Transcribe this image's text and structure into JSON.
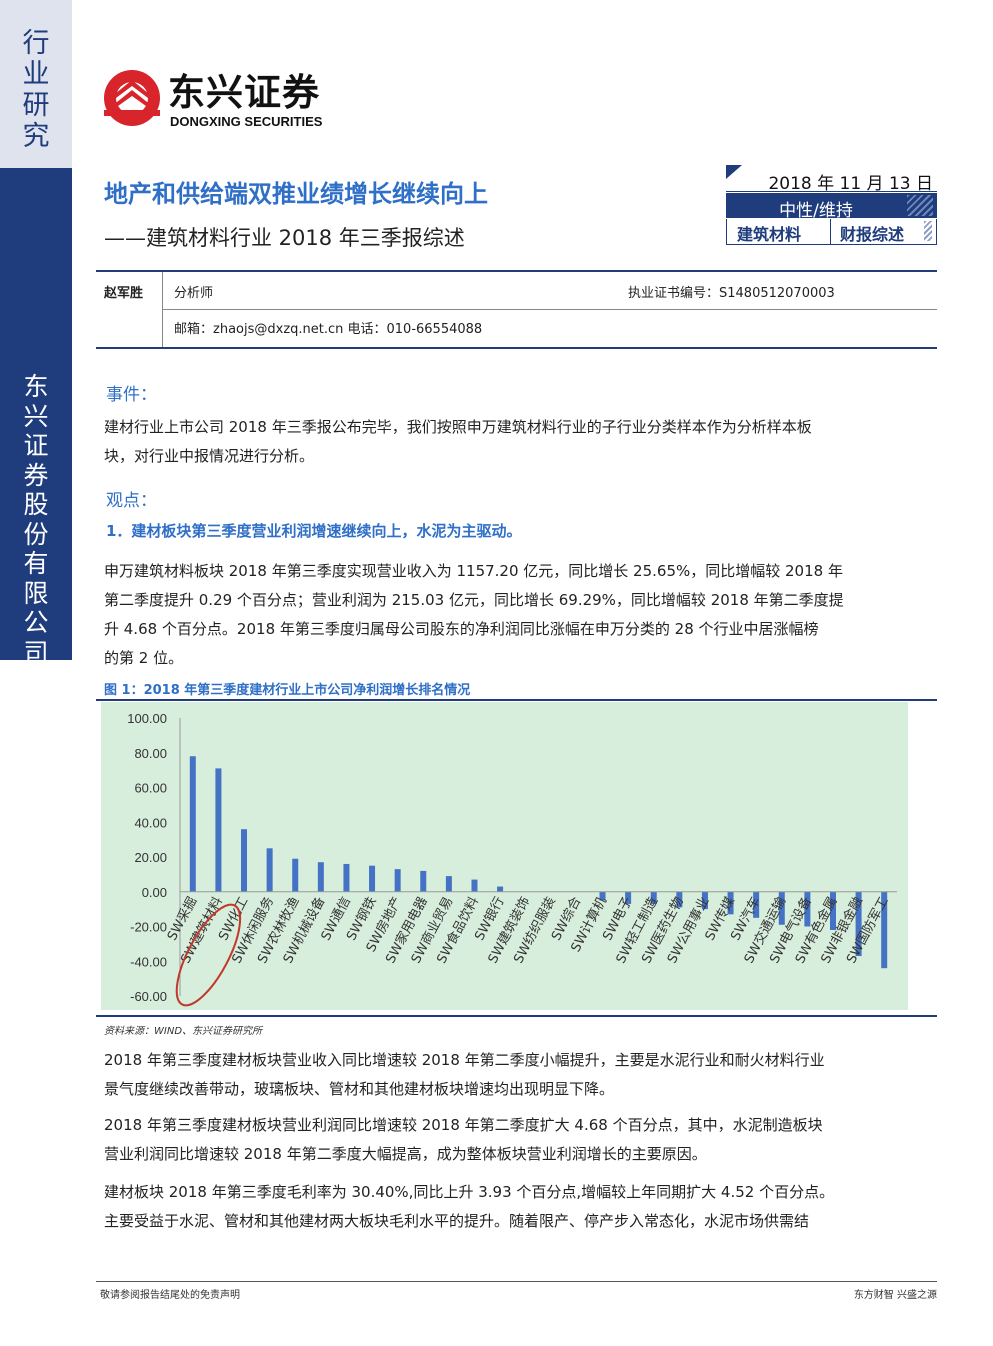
{
  "sidebar": {
    "top_text": "行业研究",
    "bottom_text": "东兴证券股份有限公司证券研究报告"
  },
  "logo": {
    "name_cn": "东兴证券",
    "name_en": "DONGXING SECURITIES",
    "brand_color": "#d7252b"
  },
  "header": {
    "title": "地产和供给端双推业绩增长继续向上",
    "subtitle": "——建筑材料行业 2018 年三季报综述",
    "date": "2018 年 11 月 13 日",
    "rating": "中性/维持",
    "tags": [
      "建筑材料",
      "财报综述"
    ]
  },
  "analyst": {
    "name": "赵军胜",
    "role": "分析师",
    "certificate": "执业证书编号：S1480512070003",
    "contact": "邮箱：zhaojs@dxzq.net.cn 电话：010-66554088"
  },
  "event": {
    "heading": "事件：",
    "lines": [
      "建材行业上市公司 2018 年三季报公布完毕，我们按照申万建筑材料行业的子行业分类样本作为分析样本板",
      "块，对行业中报情况进行分析。"
    ]
  },
  "views": {
    "heading": "观点：",
    "point_1": "1．建材板块第三季度营业利润增速继续向上，水泥为主驱动。",
    "para_1": [
      "申万建筑材料板块 2018 年第三季度实现营业收入为 1157.20 亿元，同比增长 25.65%，同比增幅较 2018 年",
      "第二季度提升 0.29 个百分点；营业利润为 215.03 亿元，同比增长 69.29%，同比增幅较 2018 年第二季度提",
      "升 4.68 个百分点。2018 年第三季度归属母公司股东的净利润同比涨幅在申万分类的 28 个行业中居涨幅榜",
      "的第 2 位。"
    ],
    "para_2": [
      "2018 年第三季度建材板块营业收入同比增速较 2018 年第二季度小幅提升，主要是水泥行业和耐火材料行业",
      "景气度继续改善带动，玻璃板块、管材和其他建材板块增速均出现明显下降。"
    ],
    "para_3": [
      "2018 年第三季度建材板块营业利润同比增速较 2018 年第二季度扩大 4.68 个百分点，其中，水泥制造板块",
      "营业利润同比增速较 2018 年第二季度大幅提高，成为整体板块营业利润增长的主要原因。"
    ],
    "para_4": [
      "建材板块 2018 年第三季度毛利率为 30.40%,同比上升 3.93 个百分点,增幅较上年同期扩大 4.52 个百分点。",
      "主要受益于水泥、管材和其他建材两大板块毛利水平的提升。随着限产、停产步入常态化，水泥市场供需结"
    ]
  },
  "figure": {
    "title": "图 1：2018 年第三季度建材行业上市公司净利润增长排名情况",
    "source": "资料来源：WIND、东兴证券研究所"
  },
  "chart_data": {
    "type": "bar",
    "title": "",
    "xlabel": "",
    "ylabel": "",
    "ylim": [
      -60,
      100
    ],
    "yticks": [
      "100.00",
      "80.00",
      "60.00",
      "40.00",
      "20.00",
      "0.00",
      "-20.00",
      "-40.00",
      "-60.00"
    ],
    "categories": [
      "SW采掘",
      "SW建筑材料",
      "SW化工",
      "SW休闲服务",
      "SW农林牧渔",
      "SW机械设备",
      "SW通信",
      "SW钢铁",
      "SW房地产",
      "SW家用电器",
      "SW商业贸易",
      "SW食品饮料",
      "SW银行",
      "SW建筑装饰",
      "SW纺织服装",
      "SW综合",
      "SW计算机",
      "SW电子",
      "SW轻工制造",
      "SW医药生物",
      "SW公用事业",
      "SW传媒",
      "SW汽车",
      "SW交通运输",
      "SW电气设备",
      "SW有色金属",
      "SW非银金融",
      "SW国防军工"
    ],
    "values": [
      78,
      71,
      36,
      25,
      19,
      17,
      16,
      15,
      13,
      12,
      9,
      7,
      3,
      0,
      0,
      0,
      -5,
      -7,
      -7,
      -9,
      -10,
      -13,
      -15,
      -19,
      -20,
      -22,
      -37,
      -44
    ],
    "bar_color": "#4472c4",
    "plot_background": "#d8eedd",
    "highlight": "SW建筑材料"
  },
  "footer": {
    "left": "敬请参阅报告结尾处的免责声明",
    "right": "东方财智  兴盛之源"
  }
}
